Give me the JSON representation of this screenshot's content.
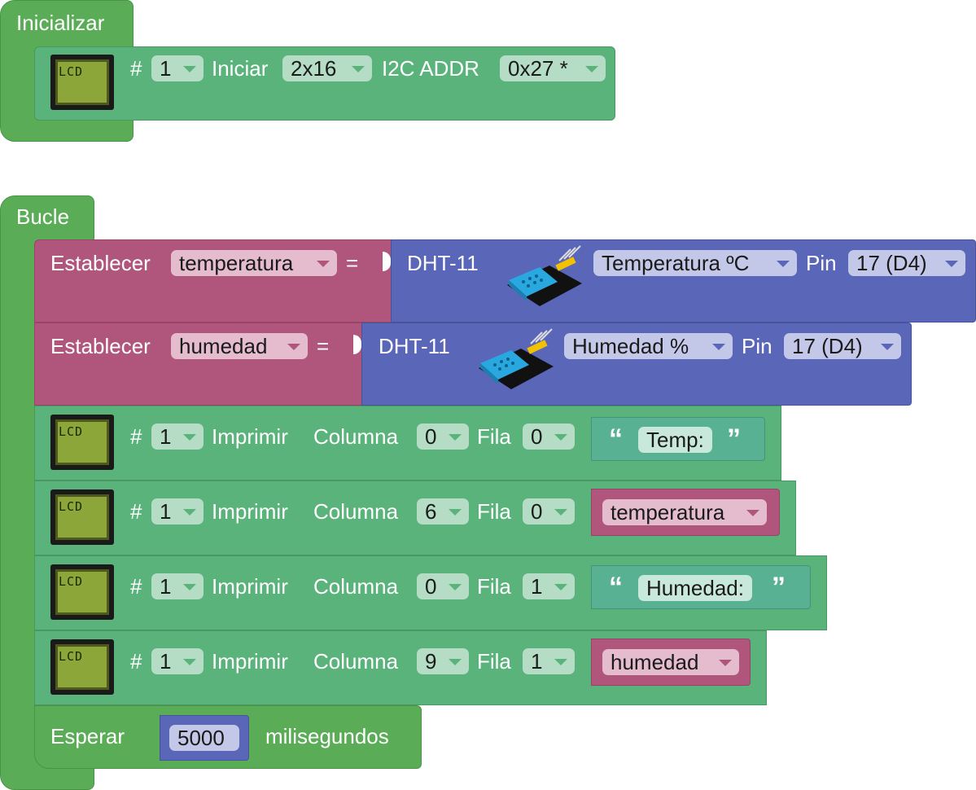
{
  "init_block": {
    "label": "Inicializar",
    "lcd_icon_text": "LCD",
    "hash": "#",
    "lcd_number": "1",
    "start_label": "Iniciar",
    "size_value": "2x16",
    "addr_label": "I2C ADDR",
    "addr_value": "0x27 *"
  },
  "loop_block": {
    "label": "Bucle",
    "set_temp": {
      "set_label": "Establecer",
      "variable": "temperatura",
      "equals": "=",
      "sensor": "DHT-11",
      "measure": "Temperatura ºC",
      "pin_label": "Pin",
      "pin_value": "17 (D4)"
    },
    "set_hum": {
      "set_label": "Establecer",
      "variable": "humedad",
      "equals": "=",
      "sensor": "DHT-11",
      "measure": "Humedad %",
      "pin_label": "Pin",
      "pin_value": "17 (D4)"
    },
    "prints": [
      {
        "hash": "#",
        "lcd_number": "1",
        "print_label": "Imprimir",
        "column_label": "Columna",
        "column_value": "0",
        "row_label": "Fila",
        "row_value": "0",
        "arg_type": "text",
        "arg_value": "Temp:"
      },
      {
        "hash": "#",
        "lcd_number": "1",
        "print_label": "Imprimir",
        "column_label": "Columna",
        "column_value": "6",
        "row_label": "Fila",
        "row_value": "0",
        "arg_type": "variable",
        "arg_value": "temperatura"
      },
      {
        "hash": "#",
        "lcd_number": "1",
        "print_label": "Imprimir",
        "column_label": "Columna",
        "column_value": "0",
        "row_label": "Fila",
        "row_value": "1",
        "arg_type": "text",
        "arg_value": "Humedad:"
      },
      {
        "hash": "#",
        "lcd_number": "1",
        "print_label": "Imprimir",
        "column_label": "Columna",
        "column_value": "9",
        "row_label": "Fila",
        "row_value": "1",
        "arg_type": "variable",
        "arg_value": "humedad"
      }
    ],
    "wait": {
      "label": "Esperar",
      "value": "5000",
      "unit": "milisegundos"
    }
  },
  "icons": {
    "lcd": "lcd-display-icon",
    "sensor": "dht11-sensor-icon",
    "quote_open": "“",
    "quote_close": "”"
  },
  "colors": {
    "control": "#5aac56",
    "lcd_block": "#5bb37c",
    "variable": "#b0567d",
    "sensor": "#5a66b8",
    "text": "#57b192"
  }
}
